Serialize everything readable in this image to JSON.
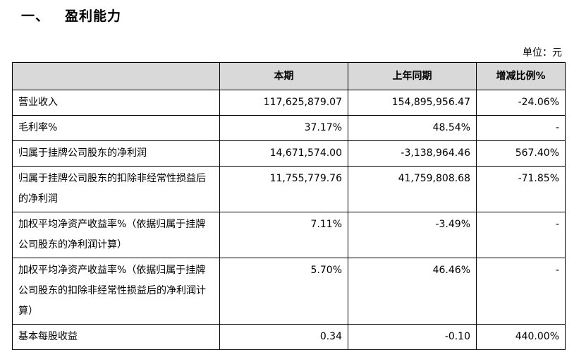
{
  "section": {
    "number": "一、",
    "title": "盈利能力"
  },
  "unit_label": "单位：元",
  "table": {
    "headers": [
      "",
      "本期",
      "上年同期",
      "增减比例%"
    ],
    "rows": [
      {
        "label": "营业收入",
        "current": "117,625,879.07",
        "previous": "154,895,956.47",
        "change": "-24.06%"
      },
      {
        "label": "毛利率%",
        "current": "37.17%",
        "previous": "48.54%",
        "change": "-"
      },
      {
        "label": "归属于挂牌公司股东的净利润",
        "current": "14,671,574.00",
        "previous": "-3,138,964.46",
        "change": "567.40%"
      },
      {
        "label": "归属于挂牌公司股东的扣除非经常性损益后的净利润",
        "current": "11,755,779.76",
        "previous": "41,759,808.68",
        "change": "-71.85%"
      },
      {
        "label": "加权平均净资产收益率%（依据归属于挂牌公司股东的净利润计算）",
        "current": "7.11%",
        "previous": "-3.49%",
        "change": "-"
      },
      {
        "label": "加权平均净资产收益率%（依据归属于挂牌公司股东的扣除非经常性损益后的净利润计算）",
        "current": "5.70%",
        "previous": "46.46%",
        "change": "-"
      },
      {
        "label": "基本每股收益",
        "current": "0.34",
        "previous": "-0.10",
        "change": "440.00%"
      }
    ]
  }
}
